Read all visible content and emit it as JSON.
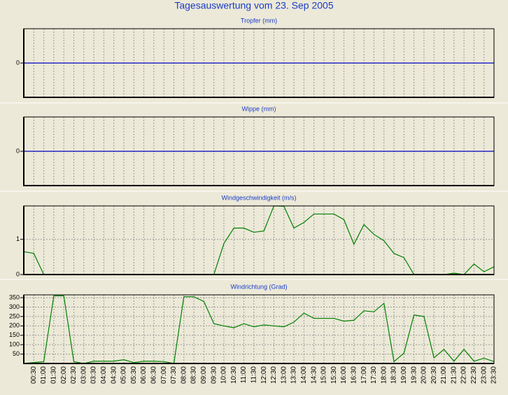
{
  "title": "Tagesauswertung vom 23. Sep 2005",
  "chart_data": [
    {
      "type": "line",
      "title": "Tropfer (mm)",
      "ylim": [
        -1,
        1
      ],
      "yticks": [
        0
      ],
      "grid": true,
      "series": [
        {
          "color": "#0000c0",
          "values": [
            0,
            0,
            0,
            0,
            0,
            0,
            0,
            0,
            0,
            0,
            0,
            0,
            0,
            0,
            0,
            0,
            0,
            0,
            0,
            0,
            0,
            0,
            0,
            0,
            0,
            0,
            0,
            0,
            0,
            0,
            0,
            0,
            0,
            0,
            0,
            0,
            0,
            0,
            0,
            0,
            0,
            0,
            0,
            0,
            0,
            0,
            0,
            0
          ]
        }
      ]
    },
    {
      "type": "line",
      "title": "Wippe (mm)",
      "ylim": [
        -1,
        1
      ],
      "yticks": [
        0
      ],
      "grid": true,
      "series": [
        {
          "color": "#0000c0",
          "values": [
            0,
            0,
            0,
            0,
            0,
            0,
            0,
            0,
            0,
            0,
            0,
            0,
            0,
            0,
            0,
            0,
            0,
            0,
            0,
            0,
            0,
            0,
            0,
            0,
            0,
            0,
            0,
            0,
            0,
            0,
            0,
            0,
            0,
            0,
            0,
            0,
            0,
            0,
            0,
            0,
            0,
            0,
            0,
            0,
            0,
            0,
            0,
            0
          ]
        }
      ]
    },
    {
      "type": "line",
      "title": "Windgeschwindigkeit (m/s)",
      "ylim": [
        0,
        1.95
      ],
      "yticks": [
        0,
        1
      ],
      "grid": true,
      "series": [
        {
          "color": "#008000",
          "values": [
            0.65,
            0.6,
            0,
            0,
            0,
            0,
            0,
            0,
            0,
            0,
            0,
            0,
            0,
            0,
            0,
            0,
            0,
            0,
            0,
            0,
            0.88,
            1.32,
            1.32,
            1.2,
            1.24,
            1.95,
            1.94,
            1.32,
            1.48,
            1.72,
            1.72,
            1.72,
            1.56,
            0.86,
            1.42,
            1.14,
            0.96,
            0.6,
            0.48,
            0,
            0,
            0,
            0,
            0.04,
            0,
            0.3,
            0.08,
            0.22
          ]
        }
      ]
    },
    {
      "type": "line",
      "title": "Windrichtung (Grad)",
      "ylim": [
        0,
        365
      ],
      "yticks": [
        50,
        100,
        150,
        200,
        250,
        300,
        350
      ],
      "grid": true,
      "categories": [
        null,
        "00:30",
        "01:00",
        "01:30",
        "02:00",
        "02:30",
        "03:00",
        "03:30",
        "04:00",
        "04:30",
        "05:00",
        "05:30",
        "06:00",
        "06:30",
        "07:00",
        "07:30",
        "08:00",
        "08:30",
        "09:00",
        "09:30",
        "10:00",
        "10:30",
        "11:00",
        "11:30",
        "12:00",
        "12:30",
        "13:00",
        "13:30",
        "14:00",
        "14:30",
        "15:00",
        "15:30",
        "16:00",
        "16:30",
        "17:00",
        "17:30",
        "18:00",
        "18:30",
        "19:00",
        "19:30",
        "20:00",
        "20:30",
        "21:00",
        "21:30",
        "22:00",
        "22:30",
        "23:00",
        "23:30"
      ],
      "series": [
        {
          "color": "#008000",
          "values": [
            0,
            5,
            10,
            360,
            360,
            10,
            0,
            12,
            12,
            12,
            20,
            5,
            12,
            12,
            10,
            0,
            355,
            355,
            330,
            212,
            200,
            190,
            212,
            195,
            205,
            200,
            195,
            220,
            268,
            240,
            240,
            240,
            225,
            230,
            280,
            275,
            320,
            10,
            55,
            258,
            250,
            30,
            75,
            12,
            75,
            12,
            28,
            10
          ]
        }
      ]
    }
  ]
}
